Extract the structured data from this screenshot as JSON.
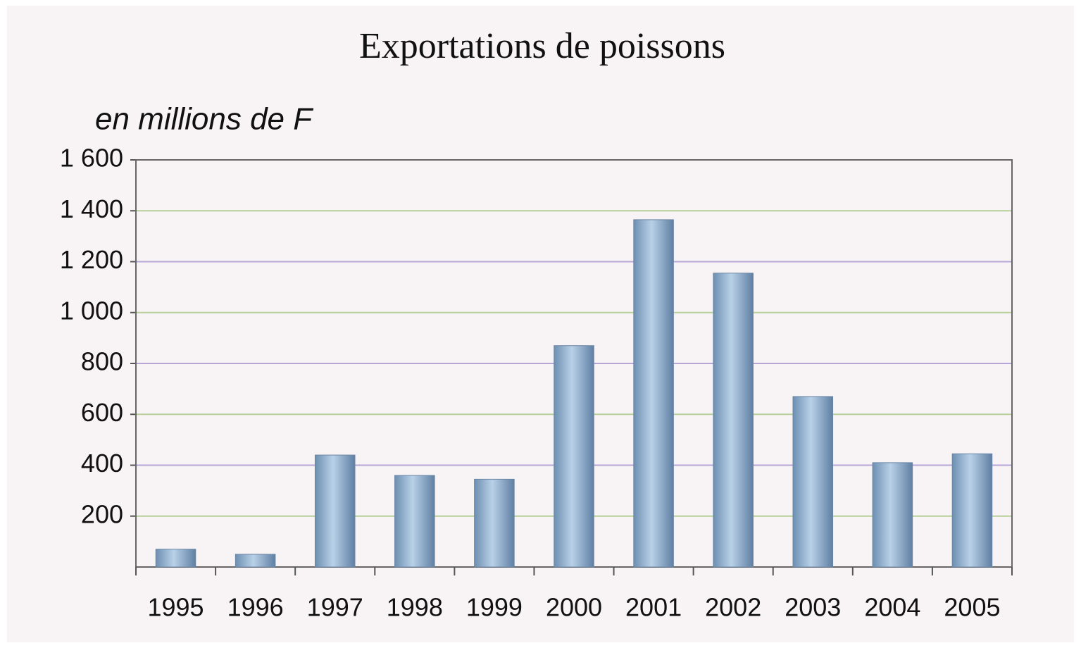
{
  "chart_data": {
    "type": "bar",
    "title": "Exportations de poissons",
    "y_label": "en millions de F",
    "categories": [
      "1995",
      "1996",
      "1997",
      "1998",
      "1999",
      "2000",
      "2001",
      "2002",
      "2003",
      "2004",
      "2005"
    ],
    "values": [
      70,
      50,
      440,
      360,
      345,
      870,
      1365,
      1155,
      670,
      410,
      445
    ],
    "color": "#8fb0cf",
    "ylim": [
      0,
      1600
    ],
    "yticks": [
      200,
      400,
      600,
      800,
      {
        "value": 1000,
        "label": "1 000"
      },
      {
        "value": 1200,
        "label": "1 200"
      },
      {
        "value": 1400,
        "label": "1 400"
      },
      {
        "value": 1600,
        "label": "1 600"
      }
    ],
    "grid": true
  }
}
